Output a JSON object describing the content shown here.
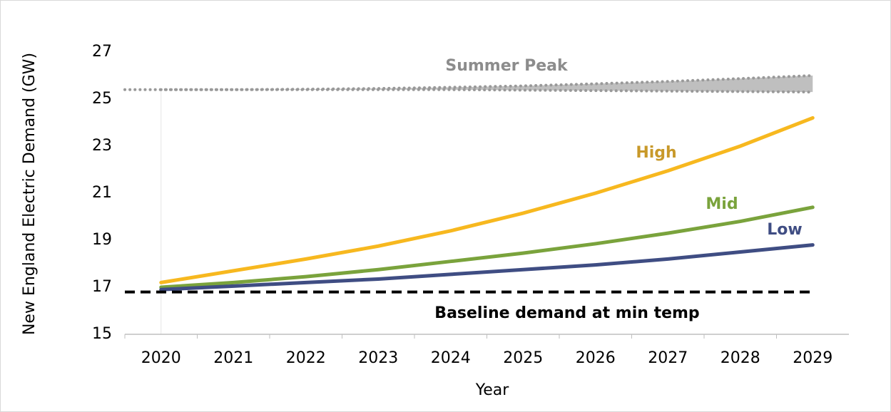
{
  "chart_data": {
    "type": "line",
    "categories": [
      "2020",
      "2021",
      "2022",
      "2023",
      "2024",
      "2025",
      "2026",
      "2027",
      "2028",
      "2029"
    ],
    "xlabel": "Year",
    "ylabel": "New England Electric Demand (GW)",
    "ylim": [
      15,
      27
    ],
    "yticks": [
      15,
      17,
      19,
      21,
      23,
      25,
      27
    ],
    "series": [
      {
        "name": "Summer Peak",
        "kind": "band",
        "color": "#bfbfbf",
        "label_color": "#8c8c8c",
        "values": [
          25.4,
          25.4,
          25.4,
          25.4,
          25.4,
          25.38,
          25.36,
          25.34,
          25.32,
          25.3
        ],
        "upper": [
          25.4,
          25.4,
          25.42,
          25.45,
          25.5,
          25.56,
          25.65,
          25.75,
          25.87,
          26.0
        ]
      },
      {
        "name": "High",
        "color": "#f7b81f",
        "label_color": "#c8992a",
        "values": [
          17.2,
          17.7,
          18.2,
          18.75,
          19.4,
          20.15,
          21.0,
          21.95,
          23.0,
          24.2
        ]
      },
      {
        "name": "Mid",
        "color": "#7aa33c",
        "label_color": "#7aa33c",
        "values": [
          17.0,
          17.2,
          17.45,
          17.75,
          18.1,
          18.45,
          18.85,
          19.3,
          19.8,
          20.4
        ]
      },
      {
        "name": "Low",
        "color": "#3f4d83",
        "label_color": "#3f4d83",
        "values": [
          16.9,
          17.05,
          17.2,
          17.35,
          17.55,
          17.75,
          17.95,
          18.2,
          18.5,
          18.8
        ]
      },
      {
        "name": "Baseline demand at min temp",
        "kind": "dashed",
        "color": "#000000",
        "label_color": "#000000",
        "values": [
          16.8,
          16.8,
          16.8,
          16.8,
          16.8,
          16.8,
          16.8,
          16.8,
          16.8,
          16.8
        ]
      }
    ]
  }
}
